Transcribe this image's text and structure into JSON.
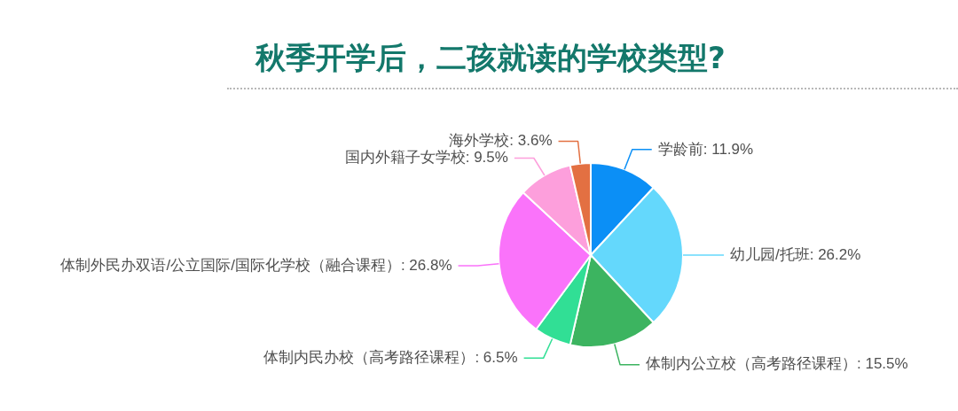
{
  "chart_data": {
    "type": "pie",
    "title": "秋季开学后，二孩就读的学校类型?",
    "categories": [
      "学龄前: 11.9%",
      "幼儿园/托班: 26.2%",
      "体制内公立校（高考路径课程）: 15.5%",
      "体制内民办校（高考路径课程）: 6.5%",
      "体制外民办双语/公立国际/国际化学校（融合课程）: 26.8%",
      "国内外籍子女学校: 9.5%",
      "海外学校: 3.6%"
    ],
    "values": [
      11.9,
      26.2,
      15.5,
      6.5,
      26.8,
      9.5,
      3.6
    ],
    "colors": [
      "#0b8ff6",
      "#64d8fc",
      "#3cb460",
      "#31df95",
      "#fa73fa",
      "#fd9fdc",
      "#e37042"
    ]
  }
}
